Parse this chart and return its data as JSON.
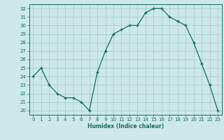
{
  "x": [
    0,
    1,
    2,
    3,
    4,
    5,
    6,
    7,
    8,
    9,
    10,
    11,
    12,
    13,
    14,
    15,
    16,
    17,
    18,
    19,
    20,
    21,
    22,
    23
  ],
  "y": [
    24,
    25,
    23,
    22,
    21.5,
    21.5,
    21,
    20,
    24.5,
    27,
    29,
    29.5,
    30,
    30,
    31.5,
    32,
    32,
    31,
    30.5,
    30,
    28,
    25.5,
    23,
    20
  ],
  "line_color": "#1a6b5a",
  "marker": "+",
  "bg_color": "#cce8e8",
  "grid_color": "#aacccc",
  "xlabel": "Humidex (Indice chaleur)",
  "ylim": [
    19.5,
    32.5
  ],
  "xlim": [
    -0.5,
    23.5
  ],
  "yticks": [
    20,
    21,
    22,
    23,
    24,
    25,
    26,
    27,
    28,
    29,
    30,
    31,
    32
  ],
  "xticks": [
    0,
    1,
    2,
    3,
    4,
    5,
    6,
    7,
    8,
    9,
    10,
    11,
    12,
    13,
    14,
    15,
    16,
    17,
    18,
    19,
    20,
    21,
    22,
    23
  ]
}
